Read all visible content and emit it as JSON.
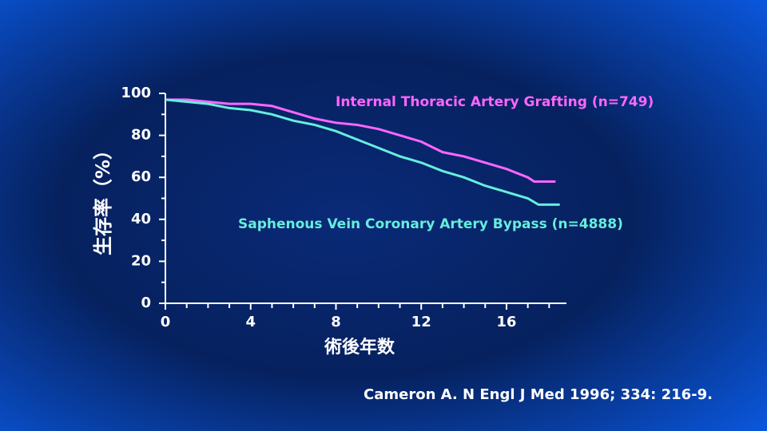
{
  "chart_data": {
    "type": "line",
    "ylabel": "生存率（%）",
    "xlabel": "術後年数",
    "citation": "Cameron A. N Engl J Med 1996; 334: 216-9.",
    "xlim": [
      0,
      19
    ],
    "ylim": [
      0,
      100
    ],
    "xticks": [
      0,
      4,
      8,
      12,
      16
    ],
    "xminorticks": [
      1,
      2,
      3,
      5,
      6,
      7,
      9,
      10,
      11,
      13,
      14,
      15,
      17,
      18
    ],
    "yticks": [
      0,
      20,
      40,
      60,
      80,
      100
    ],
    "yminorticks": [
      10,
      30,
      50,
      70,
      90
    ],
    "series": [
      {
        "name": "Internal Thoracic Artery Grafting (n=749)",
        "color": "#ff66ff",
        "x": [
          0,
          1,
          2,
          3,
          4,
          5,
          6,
          7,
          8,
          9,
          10,
          11,
          12,
          13,
          14,
          15,
          16,
          17,
          17.3,
          18.3
        ],
        "values": [
          97,
          97,
          96,
          95,
          95,
          94,
          91,
          88,
          86,
          85,
          83,
          80,
          77,
          72,
          70,
          67,
          64,
          60,
          58,
          58
        ]
      },
      {
        "name": "Saphenous Vein Coronary Artery Bypass (n=4888)",
        "color": "#66eedd",
        "x": [
          0,
          1,
          2,
          3,
          4,
          5,
          6,
          7,
          8,
          9,
          10,
          11,
          12,
          13,
          14,
          15,
          16,
          17,
          17.5,
          18.5
        ],
        "values": [
          97,
          96,
          95,
          93,
          92,
          90,
          87,
          85,
          82,
          78,
          74,
          70,
          67,
          63,
          60,
          56,
          53,
          50,
          47,
          47
        ]
      }
    ]
  }
}
